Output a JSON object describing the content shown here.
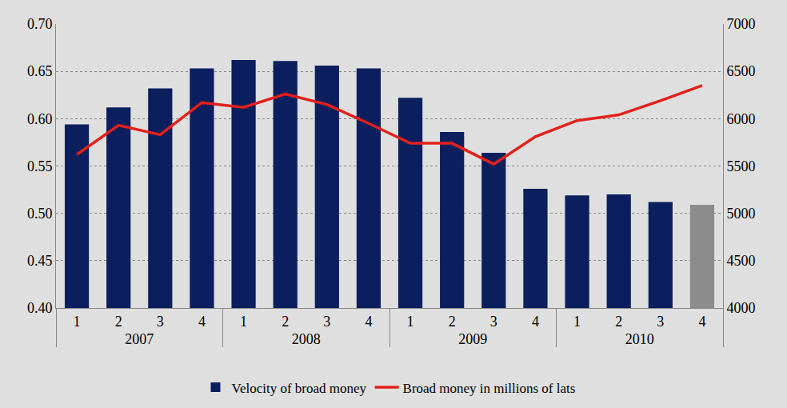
{
  "chart_data": {
    "type": "bar",
    "categories": [
      "1",
      "2",
      "3",
      "4",
      "1",
      "2",
      "3",
      "4",
      "1",
      "2",
      "3",
      "4",
      "1",
      "2",
      "3",
      "4"
    ],
    "groups": [
      "2007",
      "2007",
      "2007",
      "2007",
      "2008",
      "2008",
      "2008",
      "2008",
      "2009",
      "2009",
      "2009",
      "2009",
      "2010",
      "2010",
      "2010",
      "2010"
    ],
    "series": [
      {
        "name": "Velocity of broad money",
        "type": "bar",
        "color": "#0b1f5e",
        "colors": [
          "#0b1f5e",
          "#0b1f5e",
          "#0b1f5e",
          "#0b1f5e",
          "#0b1f5e",
          "#0b1f5e",
          "#0b1f5e",
          "#0b1f5e",
          "#0b1f5e",
          "#0b1f5e",
          "#0b1f5e",
          "#0b1f5e",
          "#0b1f5e",
          "#0b1f5e",
          "#0b1f5e",
          "#8c8c8c"
        ],
        "values": [
          0.594,
          0.612,
          0.632,
          0.653,
          0.662,
          0.661,
          0.656,
          0.653,
          0.622,
          0.586,
          0.564,
          0.526,
          0.519,
          0.52,
          0.512,
          0.509
        ]
      },
      {
        "name": "Broad money in millions of lats",
        "type": "line",
        "axis": "y2",
        "color": "#e3201b",
        "values": [
          5620,
          5930,
          5830,
          6170,
          6120,
          6260,
          6150,
          5950,
          5740,
          5740,
          5520,
          5810,
          5980,
          6040,
          6190,
          6350
        ]
      }
    ],
    "ylim": [
      0.4,
      0.7
    ],
    "yticks": [
      {
        "value": 0.4,
        "label": "0.40"
      },
      0.45,
      {
        "value": 0.5,
        "label": "0.50"
      },
      0.55,
      {
        "value": 0.6,
        "label": "0.60"
      },
      0.65,
      {
        "value": 0.7,
        "label": "0.70"
      }
    ],
    "y2lim": [
      4000,
      7000
    ],
    "y2ticks": [
      4000,
      4500,
      5000,
      5500,
      6000,
      6500,
      7000
    ],
    "grid": true,
    "legend": "bottom"
  }
}
